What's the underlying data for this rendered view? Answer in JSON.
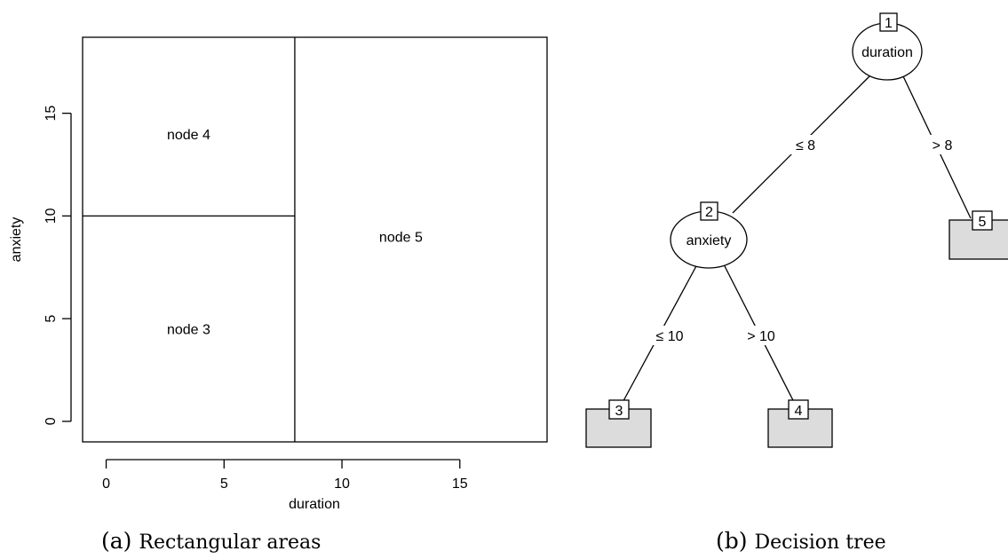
{
  "panel_a": {
    "caption_label": "(a)",
    "caption_text": "Rectangular areas",
    "xlabel": "duration",
    "ylabel": "anxiety",
    "xlim": [
      -1,
      18.7
    ],
    "ylim": [
      -1,
      18.7
    ],
    "xticks": [
      0,
      5,
      10,
      15
    ],
    "yticks": [
      0,
      5,
      10,
      15
    ],
    "split_x": 8,
    "split_y": 10,
    "regions": [
      {
        "label": "node 4",
        "x": 3.5,
        "y": 14
      },
      {
        "label": "node 3",
        "x": 3.5,
        "y": 4.5
      },
      {
        "label": "node 5",
        "x": 12.5,
        "y": 9
      }
    ]
  },
  "panel_b": {
    "caption_label": "(b)",
    "caption_text": "Decision tree",
    "inner_nodes": [
      {
        "id": "1",
        "label": "duration"
      },
      {
        "id": "2",
        "label": "anxiety"
      }
    ],
    "leaves": [
      {
        "id": "3"
      },
      {
        "id": "4"
      },
      {
        "id": "5"
      }
    ],
    "edges": [
      {
        "from": "1",
        "to": "2",
        "label": "≤ 8"
      },
      {
        "from": "1",
        "to": "5",
        "label": "> 8"
      },
      {
        "from": "2",
        "to": "3",
        "label": "≤ 10"
      },
      {
        "from": "2",
        "to": "4",
        "label": "> 10"
      }
    ]
  }
}
